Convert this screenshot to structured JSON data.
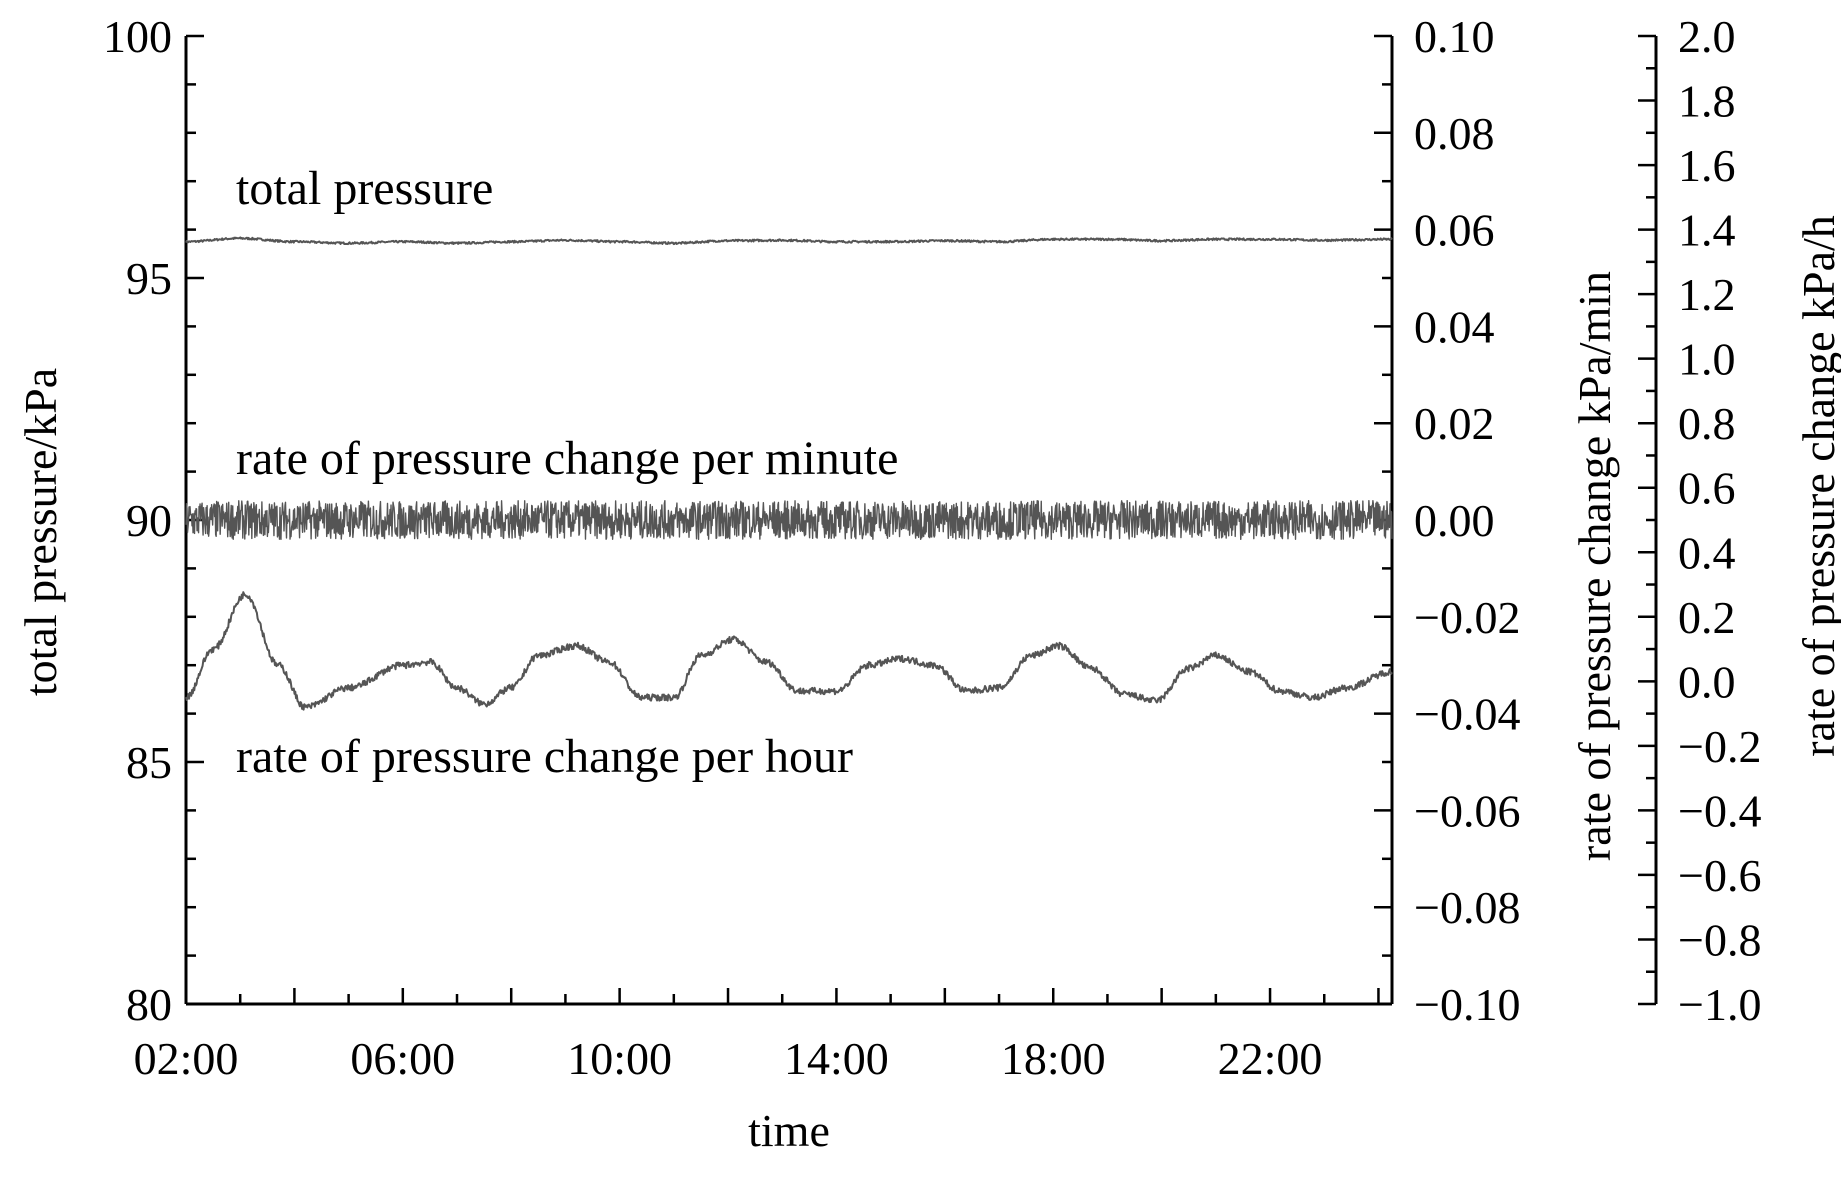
{
  "chart_data": {
    "type": "line",
    "title": "",
    "xlabel": "time",
    "x_tick_labels": [
      "02:00",
      "06:00",
      "10:00",
      "14:00",
      "18:00",
      "22:00"
    ],
    "x_tick_hours": [
      2,
      6,
      10,
      14,
      18,
      22
    ],
    "xlim_hours": [
      2,
      24.25
    ],
    "grid": false,
    "legend": "none (series labelled by in-plot annotations)",
    "axes": {
      "left": {
        "label": "total pressure/kPa",
        "ylim": [
          80,
          100
        ],
        "major_ticks": [
          "80",
          "85",
          "90",
          "95",
          "100"
        ],
        "minor_step": 1
      },
      "right1": {
        "label": "rate of pressure change kPa/min",
        "ylim": [
          -0.1,
          0.1
        ],
        "major_ticks": [
          "−0.10",
          "−0.08",
          "−0.06",
          "−0.04",
          "−0.02",
          "0.00",
          "0.02",
          "0.04",
          "0.06",
          "0.08",
          "0.10"
        ],
        "minor_step": 0.01
      },
      "right2": {
        "label": "rate of pressure change kPa/h",
        "ylim": [
          -1.0,
          2.0
        ],
        "major_ticks": [
          "−1.0",
          "−0.8",
          "−0.6",
          "−0.4",
          "−0.2",
          "0.0",
          "0.2",
          "0.4",
          "0.6",
          "0.8",
          "1.0",
          "1.2",
          "1.4",
          "1.6",
          "1.8",
          "2.0"
        ],
        "minor_step": 0.1
      }
    },
    "annotations": [
      "total pressure",
      "rate of pressure change per minute",
      "rate of pressure change per hour"
    ],
    "series": [
      {
        "axis": "left",
        "color": "#555555",
        "x_hours": [
          2,
          3,
          4,
          5,
          6,
          7,
          8,
          9,
          10,
          11,
          12,
          13,
          14,
          15,
          16,
          17,
          18,
          19,
          20,
          21,
          22,
          23,
          24.25
        ],
        "values": [
          95.75,
          95.82,
          95.75,
          95.72,
          95.75,
          95.72,
          95.75,
          95.78,
          95.75,
          95.72,
          95.77,
          95.78,
          95.75,
          95.75,
          95.77,
          95.75,
          95.8,
          95.8,
          95.77,
          95.8,
          95.8,
          95.78,
          95.8
        ],
        "noise_amplitude": 0.02
      },
      {
        "axis": "right1",
        "color": "#555555",
        "x_hours": [
          2,
          24.25
        ],
        "values": [
          0.0,
          0.0
        ],
        "noise_amplitude": 0.004
      },
      {
        "axis": "right2",
        "color": "#555555",
        "x_hours": [
          2,
          2.5,
          3.1,
          3.7,
          4.2,
          5.0,
          6.0,
          6.5,
          7.0,
          7.5,
          8.0,
          8.5,
          9.2,
          9.8,
          10.4,
          11.0,
          11.5,
          12.1,
          12.7,
          13.3,
          14.0,
          14.6,
          15.2,
          15.8,
          16.4,
          17.0,
          17.6,
          18.1,
          18.7,
          19.3,
          19.9,
          20.5,
          21.0,
          21.6,
          22.2,
          22.8,
          23.4,
          24.25
        ],
        "values": [
          -0.05,
          0.1,
          0.27,
          0.05,
          -0.08,
          -0.02,
          0.05,
          0.06,
          -0.02,
          -0.07,
          -0.02,
          0.08,
          0.11,
          0.06,
          -0.05,
          -0.05,
          0.08,
          0.13,
          0.06,
          -0.03,
          -0.03,
          0.05,
          0.07,
          0.05,
          -0.03,
          -0.02,
          0.08,
          0.11,
          0.04,
          -0.04,
          -0.06,
          0.04,
          0.08,
          0.03,
          -0.03,
          -0.05,
          -0.02,
          0.03
        ],
        "noise_amplitude": 0.01
      }
    ]
  }
}
